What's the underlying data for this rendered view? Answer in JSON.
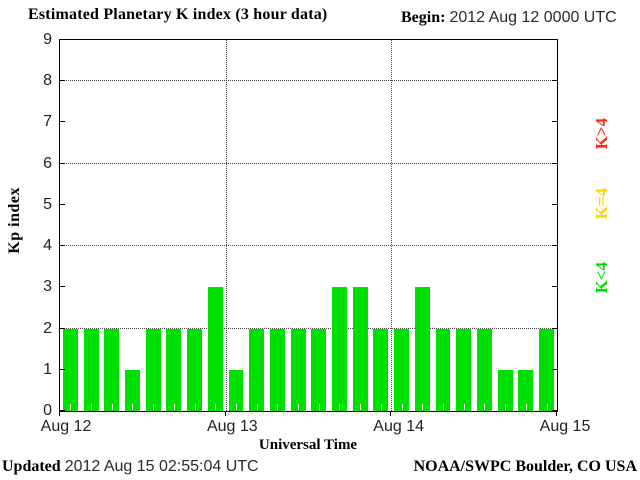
{
  "header": {
    "title": "Estimated Planetary K index (3 hour data)",
    "begin_label": "Begin:",
    "begin_value": "2012 Aug 12 0000 UTC"
  },
  "chart_data": {
    "type": "bar",
    "title": "Estimated Planetary K index (3 hour data)",
    "xlabel": "Universal Time",
    "ylabel": "Kp index",
    "ylim": [
      0,
      9
    ],
    "yticks": [
      0,
      1,
      2,
      3,
      4,
      5,
      6,
      7,
      8,
      9
    ],
    "grid_y": [
      2,
      4,
      6,
      8
    ],
    "x_day_labels": [
      "Aug 12",
      "Aug 13",
      "Aug 14",
      "Aug 15"
    ],
    "interval_hours": 3,
    "begin": "2012 Aug 12 0000 UTC",
    "values": [
      2,
      2,
      2,
      1,
      2,
      2,
      2,
      3,
      1,
      2,
      2,
      2,
      2,
      3,
      3,
      2,
      2,
      3,
      2,
      2,
      2,
      1,
      1,
      2
    ],
    "bar_color": "#00e000",
    "legend": [
      {
        "label": "K>4",
        "color": "#ff2b12"
      },
      {
        "label": "K=4",
        "color": "#ffd400"
      },
      {
        "label": "K<4",
        "color": "#00dd00"
      }
    ]
  },
  "footer": {
    "updated_label": "Updated",
    "updated_value": "2012 Aug 15 02:55:04 UTC",
    "source": "NOAA/SWPC Boulder, CO USA"
  }
}
